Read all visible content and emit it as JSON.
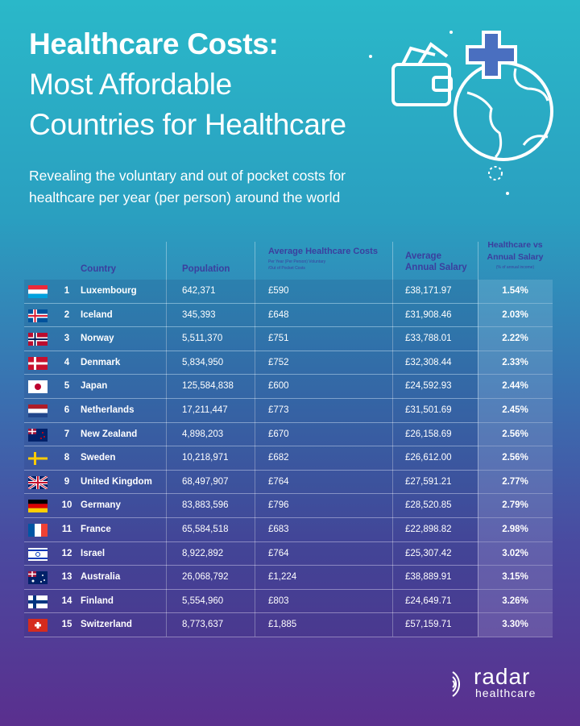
{
  "title": {
    "line1": "Healthcare Costs:",
    "line2": "Most Affordable",
    "line3": "Countries for Healthcare"
  },
  "subtitle": {
    "line1": "Revealing the voluntary and out of pocket costs for",
    "line2": "healthcare per year (per person) around the world"
  },
  "table": {
    "headers": {
      "country": "Country",
      "population": "Population",
      "cost": "Average Healthcare Costs",
      "cost_note1": "Per Year (Per Person) Voluntary",
      "cost_note2": "/Out of Pocket Costs",
      "salary1": "Average",
      "salary2": "Annual Salary",
      "pct1": "Healthcare vs",
      "pct2": "Annual Salary",
      "pct_note": "(% of annual income)"
    },
    "rows": [
      {
        "flag": "luxembourg",
        "rank": "1",
        "country": "Luxembourg",
        "population": "642,371",
        "cost": "£590",
        "salary": "£38,171.97",
        "pct": "1.54%"
      },
      {
        "flag": "iceland",
        "rank": "2",
        "country": "Iceland",
        "population": "345,393",
        "cost": "£648",
        "salary": "£31,908.46",
        "pct": "2.03%"
      },
      {
        "flag": "norway",
        "rank": "3",
        "country": "Norway",
        "population": "5,511,370",
        "cost": "£751",
        "salary": "£33,788.01",
        "pct": "2.22%"
      },
      {
        "flag": "denmark",
        "rank": "4",
        "country": "Denmark",
        "population": "5,834,950",
        "cost": "£752",
        "salary": "£32,308.44",
        "pct": "2.33%"
      },
      {
        "flag": "japan",
        "rank": "5",
        "country": "Japan",
        "population": "125,584,838",
        "cost": "£600",
        "salary": "£24,592.93",
        "pct": "2.44%"
      },
      {
        "flag": "netherlands",
        "rank": "6",
        "country": "Netherlands",
        "population": "17,211,447",
        "cost": "£773",
        "salary": "£31,501.69",
        "pct": "2.45%"
      },
      {
        "flag": "new-zealand",
        "rank": "7",
        "country": "New Zealand",
        "population": "4,898,203",
        "cost": "£670",
        "salary": "£26,158.69",
        "pct": "2.56%"
      },
      {
        "flag": "sweden",
        "rank": "8",
        "country": "Sweden",
        "population": "10,218,971",
        "cost": "£682",
        "salary": "£26,612.00",
        "pct": "2.56%"
      },
      {
        "flag": "united-kingdom",
        "rank": "9",
        "country": "United Kingdom",
        "population": "68,497,907",
        "cost": "£764",
        "salary": "£27,591.21",
        "pct": "2.77%"
      },
      {
        "flag": "germany",
        "rank": "10",
        "country": "Germany",
        "population": "83,883,596",
        "cost": "£796",
        "salary": "£28,520.85",
        "pct": "2.79%"
      },
      {
        "flag": "france",
        "rank": "11",
        "country": "France",
        "population": "65,584,518",
        "cost": "£683",
        "salary": "£22,898.82",
        "pct": "2.98%"
      },
      {
        "flag": "israel",
        "rank": "12",
        "country": "Israel",
        "population": "8,922,892",
        "cost": "£764",
        "salary": "£25,307.42",
        "pct": "3.02%"
      },
      {
        "flag": "australia",
        "rank": "13",
        "country": "Australia",
        "population": "26,068,792",
        "cost": "£1,224",
        "salary": "£38,889.91",
        "pct": "3.15%"
      },
      {
        "flag": "finland",
        "rank": "14",
        "country": "Finland",
        "population": "5,554,960",
        "cost": "£803",
        "salary": "£24,649.71",
        "pct": "3.26%"
      },
      {
        "flag": "switzerland",
        "rank": "15",
        "country": "Switzerland",
        "population": "8,773,637",
        "cost": "£1,885",
        "salary": "£57,159.71",
        "pct": "3.30%"
      }
    ]
  },
  "logo": {
    "word1": "radar",
    "word2": "healthcare"
  },
  "colors": {
    "header_text": "#3b3f9e",
    "bg_top": "#2ab8c9",
    "bg_bottom": "#5a2f8e"
  }
}
